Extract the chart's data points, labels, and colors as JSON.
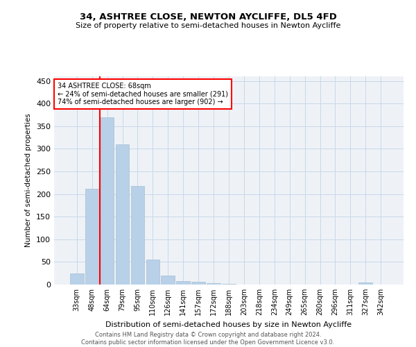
{
  "title": "34, ASHTREE CLOSE, NEWTON AYCLIFFE, DL5 4FD",
  "subtitle": "Size of property relative to semi-detached houses in Newton Aycliffe",
  "xlabel": "Distribution of semi-detached houses by size in Newton Aycliffe",
  "ylabel": "Number of semi-detached properties",
  "categories": [
    "33sqm",
    "48sqm",
    "64sqm",
    "79sqm",
    "95sqm",
    "110sqm",
    "126sqm",
    "141sqm",
    "157sqm",
    "172sqm",
    "188sqm",
    "203sqm",
    "218sqm",
    "234sqm",
    "249sqm",
    "265sqm",
    "280sqm",
    "296sqm",
    "311sqm",
    "327sqm",
    "342sqm"
  ],
  "values": [
    25,
    212,
    370,
    310,
    218,
    55,
    20,
    8,
    6,
    3,
    1,
    0,
    0,
    0,
    0,
    0,
    0,
    0,
    0,
    4,
    0
  ],
  "bar_color": "#b8d0e8",
  "bar_edge_color": "#a8bfd0",
  "property_bin_index": 2,
  "annotation_text_line1": "34 ASHTREE CLOSE: 68sqm",
  "annotation_text_line2": "← 24% of semi-detached houses are smaller (291)",
  "annotation_text_line3": "74% of semi-detached houses are larger (902) →",
  "ylim": [
    0,
    460
  ],
  "yticks": [
    0,
    50,
    100,
    150,
    200,
    250,
    300,
    350,
    400,
    450
  ],
  "grid_color": "#c8d8e8",
  "background_color": "#eef2f7",
  "footer_line1": "Contains HM Land Registry data © Crown copyright and database right 2024.",
  "footer_line2": "Contains public sector information licensed under the Open Government Licence v3.0."
}
